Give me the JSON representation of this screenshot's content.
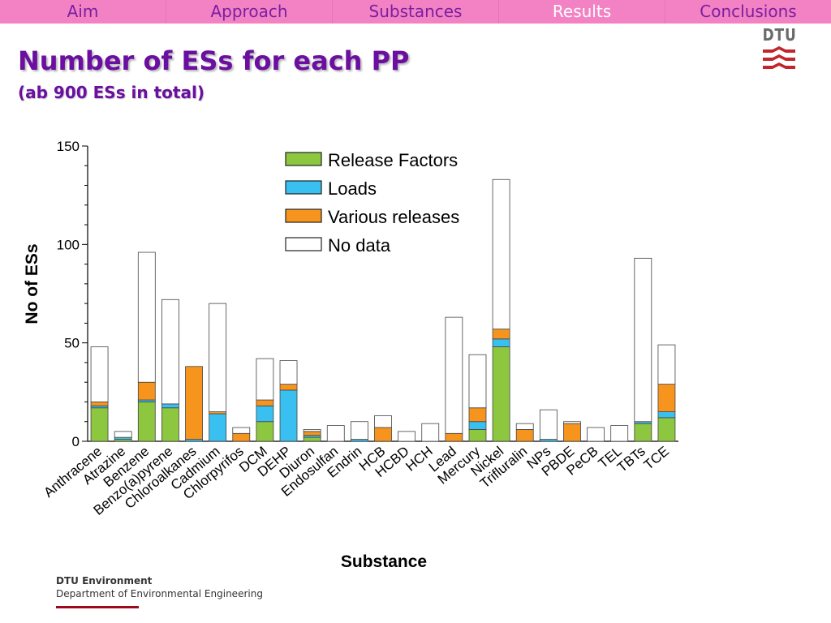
{
  "nav": {
    "tabs": [
      "Aim",
      "Approach",
      "Substances",
      "Results",
      "Conclusions"
    ],
    "active_index": 3
  },
  "logo": {
    "text": "DTU"
  },
  "slide": {
    "title": "Number of ESs for each PP",
    "subtitle": "(ab 900 ESs in total)"
  },
  "footer": {
    "org": "DTU Environment",
    "dept": "Department of Environmental Engineering"
  },
  "colors": {
    "nav_bg": "#f382c4",
    "title": "#6a0fa0",
    "release_factors": "#8dc63f",
    "loads": "#39c0f0",
    "various_releases": "#f7941d",
    "no_data": "#ffffff",
    "logo_red": "#c0272d"
  },
  "chart_data": {
    "type": "bar",
    "stacked": true,
    "xlabel": "Substance",
    "ylabel": "No of ESs",
    "ylim": [
      0,
      150
    ],
    "yticks": [
      0,
      50,
      100,
      150
    ],
    "legend_position": "top-center",
    "categories": [
      "Anthracene",
      "Atrazine",
      "Benzene",
      "Benzo(a)pyrene",
      "Chloroalkanes",
      "Cadmium",
      "Chlorpyrifos",
      "DCM",
      "DEHP",
      "Diuron",
      "Endosulfan",
      "Endrin",
      "HCB",
      "HCBD",
      "HCH",
      "Lead",
      "Mercury",
      "Nickel",
      "Trifluralin",
      "NPs",
      "PBDE",
      "PeCB",
      "TEL",
      "TBTs",
      "TCE"
    ],
    "series": [
      {
        "name": "Release Factors",
        "color": "#8dc63f",
        "values": [
          17,
          1,
          20,
          17,
          0,
          0,
          0,
          10,
          0,
          2,
          0,
          0,
          0,
          0,
          0,
          0,
          6,
          48,
          0,
          0,
          0,
          0,
          0,
          9,
          12
        ]
      },
      {
        "name": "Loads",
        "color": "#39c0f0",
        "values": [
          1,
          1,
          1,
          2,
          1,
          14,
          0,
          8,
          26,
          1,
          0,
          1,
          0,
          0,
          0,
          0,
          4,
          4,
          0,
          1,
          0,
          0,
          0,
          1,
          3
        ]
      },
      {
        "name": "Various releases",
        "color": "#f7941d",
        "values": [
          2,
          0,
          9,
          0,
          37,
          1,
          4,
          3,
          3,
          2,
          0,
          0,
          7,
          0,
          0,
          4,
          7,
          5,
          6,
          0,
          9,
          0,
          0,
          0,
          14
        ]
      },
      {
        "name": "No data",
        "color": "#ffffff",
        "values": [
          28,
          3,
          66,
          53,
          0,
          55,
          3,
          21,
          12,
          1,
          8,
          9,
          6,
          5,
          9,
          59,
          27,
          76,
          3,
          15,
          1,
          7,
          8,
          83,
          20
        ]
      }
    ]
  }
}
